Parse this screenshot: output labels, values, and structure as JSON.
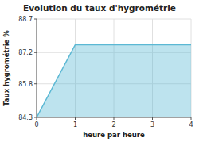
{
  "chart_data": {
    "type": "area",
    "title": "Evolution du taux d'hygrométrie",
    "x_label": "heure par heure",
    "y_label": "Taux hygrométrie %",
    "x": [
      0,
      1,
      4
    ],
    "values": [
      84.3,
      87.55,
      87.55
    ],
    "baseline": 84.3,
    "color": "#5bb8d4",
    "xlim": [
      0,
      4
    ],
    "ylim": [
      84.3,
      88.7
    ],
    "xticks": [
      0,
      1,
      2,
      3,
      4
    ],
    "yticks": [
      84.3,
      85.8,
      87.2,
      88.7
    ],
    "grid": true
  }
}
